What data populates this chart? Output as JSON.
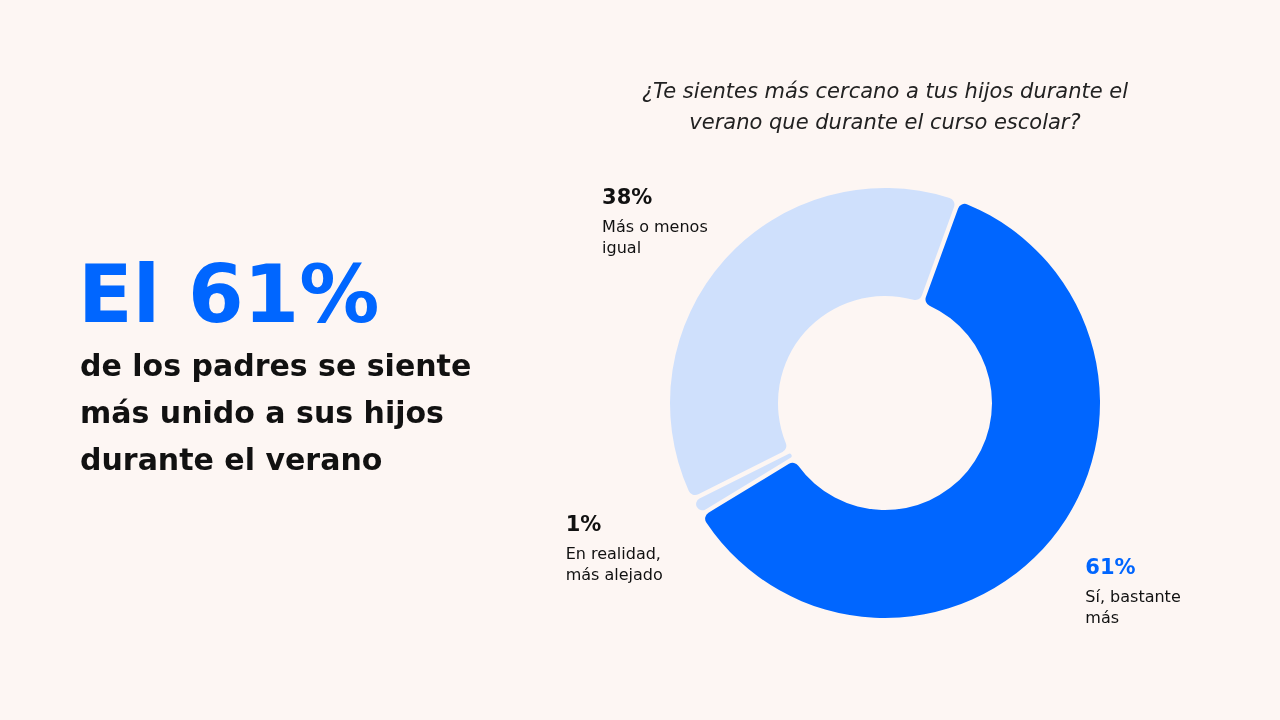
{
  "chart_data": {
    "type": "donut",
    "title": "¿Te sientes más cercano a tus hijos durante el verano que durante el curso escolar?",
    "categories": [
      "Sí, bastante más",
      "En realidad, más alejado",
      "Más o menos igual"
    ],
    "values": [
      61,
      1,
      38
    ],
    "value_labels": [
      "61%",
      "1%",
      "38%"
    ],
    "colors": [
      "#0066ff",
      "#cfe0fc",
      "#cfe0fc"
    ],
    "annotations": [
      "El 61%",
      "de los padres se siente más unido a sus hijos durante el verano"
    ]
  }
}
